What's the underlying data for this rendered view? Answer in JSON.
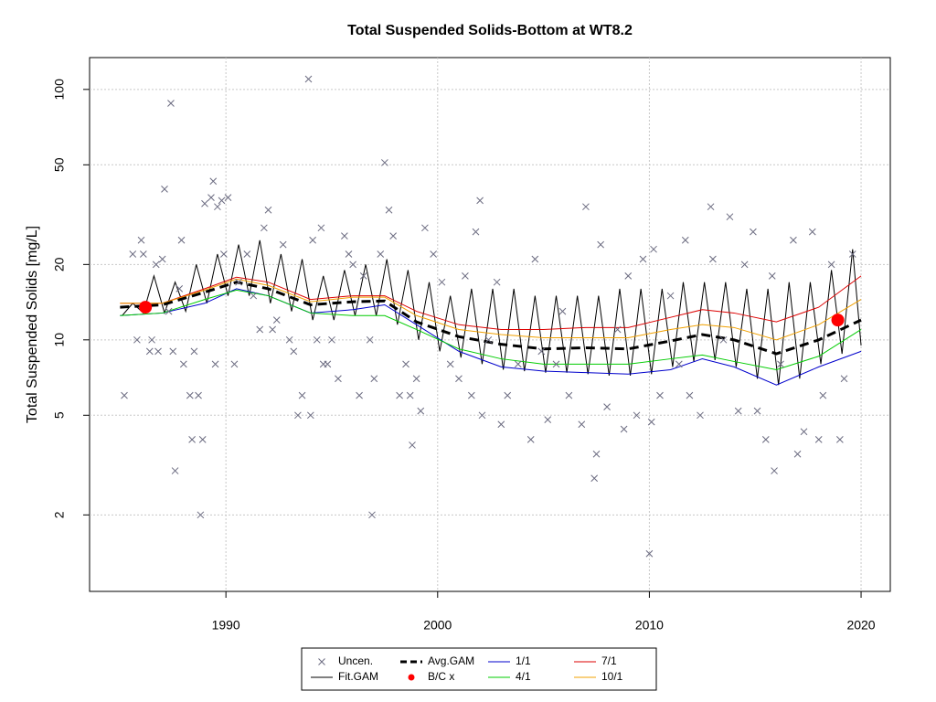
{
  "chart_data": {
    "type": "line",
    "title": "Total Suspended Solids-Bottom at WT8.2",
    "y_label": "Total Suspended Solids [mg/L]",
    "log_y": true,
    "grid": true,
    "legend_position": "bottom",
    "xlim": [
      1983.56,
      2021.38
    ],
    "xticks": [
      1990,
      2000,
      2010,
      2020
    ],
    "ylim": [
      0.99,
      134
    ],
    "yticks": [
      2,
      5,
      10,
      20,
      50,
      100
    ],
    "series": [
      {
        "name": "Uncen.",
        "color": "#6b6b80",
        "style": "points",
        "x": [
          1985.2,
          1985.6,
          1985.8,
          1986,
          1986.1,
          1986.4,
          1986.5,
          1986.7,
          1986.8,
          1987,
          1987.1,
          1987.3,
          1987.4,
          1987.5,
          1987.6,
          1987.8,
          1987.9,
          1988,
          1988.3,
          1988.4,
          1988.5,
          1988.7,
          1988.8,
          1988.9,
          1989,
          1989.3,
          1989.4,
          1989.5,
          1989.6,
          1989.8,
          1989.9,
          1990.1,
          1990.4,
          1990.6,
          1991,
          1991.3,
          1991.6,
          1991.8,
          1992,
          1992.2,
          1992.4,
          1992.7,
          1993,
          1993.2,
          1993.4,
          1993.6,
          1993.9,
          1994,
          1994.1,
          1994.3,
          1994.5,
          1994.6,
          1994.8,
          1995,
          1995.3,
          1995.6,
          1995.8,
          1996,
          1996.3,
          1996.5,
          1996.8,
          1996.9,
          1997,
          1997.3,
          1997.5,
          1997.7,
          1997.9,
          1998.2,
          1998.5,
          1998.7,
          1998.8,
          1999,
          1999.2,
          1999.4,
          1999.8,
          2000.2,
          2000.6,
          2001,
          2001.3,
          2001.6,
          2001.8,
          2002,
          2002.1,
          2002.4,
          2002.8,
          2003,
          2003.3,
          2003.8,
          2004.4,
          2004.6,
          2004.9,
          2005.2,
          2005.6,
          2005.9,
          2006.2,
          2006.8,
          2007,
          2007.4,
          2007.5,
          2007.7,
          2008,
          2008.5,
          2008.8,
          2009,
          2009.4,
          2009.7,
          2010,
          2010.1,
          2010.2,
          2010.5,
          2011,
          2011.4,
          2011.7,
          2011.9,
          2012.4,
          2012.9,
          2013,
          2013.5,
          2013.8,
          2014.2,
          2014.5,
          2014.9,
          2015.1,
          2015.5,
          2015.8,
          2015.9,
          2016.2,
          2016.8,
          2017,
          2017.3,
          2017.7,
          2018,
          2018.2,
          2018.6,
          2019,
          2019.2,
          2019.6
        ],
        "values": [
          6,
          22,
          10,
          25,
          22,
          9,
          10,
          20,
          9,
          21,
          40,
          13,
          88,
          9,
          3,
          16,
          25,
          8,
          6,
          4,
          9,
          6,
          2,
          4,
          35,
          37,
          43,
          8,
          34,
          36,
          22,
          37,
          8,
          17,
          22,
          15,
          11,
          28,
          33,
          11,
          12,
          24,
          10,
          9,
          5,
          6,
          110,
          5,
          25,
          10,
          28,
          8,
          8,
          10,
          7,
          26,
          22,
          20,
          6,
          18,
          10,
          2,
          7,
          22,
          51,
          33,
          26,
          6,
          8,
          6,
          3.8,
          7,
          5.2,
          28,
          22,
          17,
          8,
          7,
          18,
          6,
          27,
          36,
          5,
          10,
          17,
          4.6,
          6,
          8,
          4,
          21,
          9,
          4.8,
          8,
          13,
          6,
          4.6,
          34,
          2.8,
          3.5,
          24,
          5.4,
          11,
          4.4,
          18,
          5,
          21,
          1.4,
          4.7,
          23,
          6,
          15,
          8,
          25,
          6,
          5,
          34,
          21,
          10,
          31,
          5.2,
          20,
          27,
          5.2,
          4,
          18,
          3,
          8,
          25,
          3.5,
          4.3,
          27,
          4,
          6,
          20,
          4,
          7,
          22
        ]
      },
      {
        "name": "Fit.GAM",
        "color": "#000000",
        "style": "line",
        "x": [
          1985.1,
          1985.6,
          1986.1,
          1986.6,
          1987.1,
          1987.6,
          1988.1,
          1988.6,
          1989.1,
          1989.6,
          1990.1,
          1990.6,
          1991.1,
          1991.6,
          1992.1,
          1992.6,
          1993.1,
          1993.6,
          1994.1,
          1994.6,
          1995.1,
          1995.6,
          1996.1,
          1996.6,
          1997.1,
          1997.6,
          1998.1,
          1998.6,
          1999.1,
          1999.6,
          2000.1,
          2000.6,
          2001.1,
          2001.6,
          2002.1,
          2002.6,
          2003.1,
          2003.6,
          2004.1,
          2004.6,
          2005.1,
          2005.6,
          2006.1,
          2006.6,
          2007.1,
          2007.6,
          2008.1,
          2008.6,
          2009.1,
          2009.6,
          2010.1,
          2010.6,
          2011.1,
          2011.6,
          2012.1,
          2012.6,
          2013.1,
          2013.6,
          2014.1,
          2014.6,
          2015.1,
          2015.6,
          2016.1,
          2016.6,
          2017.1,
          2017.6,
          2018.1,
          2018.6,
          2019.1,
          2019.6,
          2020
        ],
        "values": [
          12.5,
          14,
          12.8,
          18,
          12.8,
          17,
          13,
          20,
          14,
          22,
          15,
          24,
          15,
          25,
          14,
          22,
          13,
          21,
          12,
          18,
          12,
          19,
          12.5,
          20,
          12.5,
          21,
          11.5,
          19,
          10,
          17,
          9,
          15,
          8.5,
          16,
          8,
          16,
          7.6,
          16,
          7.5,
          15,
          7.4,
          15,
          7.4,
          15,
          7.3,
          15,
          7.2,
          16,
          7.2,
          16,
          7.3,
          16,
          7.8,
          17,
          8.2,
          17,
          8.3,
          17,
          7.8,
          16,
          7,
          16,
          6.6,
          17,
          7,
          17,
          8,
          19,
          8.8,
          23,
          9.5
        ]
      },
      {
        "name": "Avg.GAM",
        "color": "#000000",
        "style": "dashed",
        "x": [
          1985,
          1987,
          1989,
          1990.5,
          1992,
          1994,
          1996,
          1997.5,
          1999,
          2001,
          2003,
          2005,
          2007,
          2009,
          2011,
          2012.5,
          2014,
          2016,
          2018,
          2020
        ],
        "values": [
          13.5,
          13.8,
          15.5,
          17,
          16,
          13.8,
          14.2,
          14.3,
          11.8,
          10.3,
          9.6,
          9.2,
          9.3,
          9.2,
          9.9,
          10.5,
          10,
          8.8,
          10,
          12
        ]
      },
      {
        "name": "B/C x",
        "color": "#ff0000",
        "style": "dots",
        "x": [
          1986.2,
          2018.9
        ],
        "values": [
          13.5,
          12
        ]
      },
      {
        "name": "1/1",
        "color": "#0000cc",
        "style": "line",
        "x": [
          1985,
          1987,
          1989,
          1990.5,
          1992,
          1994,
          1996,
          1997.5,
          1999,
          2001,
          2003,
          2005,
          2007,
          2009,
          2011,
          2012.5,
          2014,
          2016,
          2018,
          2020
        ],
        "values": [
          12.5,
          12.8,
          14,
          16,
          15,
          12.8,
          13.2,
          13.8,
          11.5,
          9,
          7.8,
          7.5,
          7.4,
          7.3,
          7.6,
          8.4,
          7.8,
          6.6,
          7.8,
          9
        ]
      },
      {
        "name": "4/1",
        "color": "#00cc00",
        "style": "line",
        "x": [
          1985,
          1987,
          1989,
          1990.5,
          1992,
          1994,
          1996,
          1997.5,
          1999,
          2001,
          2003,
          2005,
          2007,
          2009,
          2011,
          2012.5,
          2014,
          2016,
          2018,
          2020
        ],
        "values": [
          12.5,
          12.8,
          14.5,
          15.8,
          15,
          12.8,
          12.5,
          12.5,
          11,
          9.2,
          8.4,
          8,
          8,
          8,
          8.4,
          8.7,
          8.2,
          7.6,
          8.6,
          11
        ]
      },
      {
        "name": "7/1",
        "color": "#dd0000",
        "style": "line",
        "x": [
          1985,
          1987,
          1989,
          1990.5,
          1992,
          1994,
          1996,
          1997.5,
          1999,
          2001,
          2003,
          2005,
          2007,
          2009,
          2011,
          2012.5,
          2014,
          2016,
          2018,
          2020
        ],
        "values": [
          14,
          14,
          16,
          17.8,
          17,
          14.5,
          15,
          15,
          13,
          11.5,
          11,
          11,
          11.2,
          11.2,
          12.3,
          13.2,
          12.8,
          11.8,
          13.5,
          18
        ]
      },
      {
        "name": "10/1",
        "color": "#f0a000",
        "style": "line",
        "x": [
          1985,
          1987,
          1989,
          1990.5,
          1992,
          1994,
          1996,
          1997.5,
          1999,
          2001,
          2003,
          2005,
          2007,
          2009,
          2011,
          2012.5,
          2014,
          2016,
          2018,
          2020
        ],
        "values": [
          14,
          14,
          15.8,
          17.5,
          16.5,
          14.2,
          14.8,
          14.8,
          12.5,
          11,
          10.5,
          10.2,
          10.2,
          10.2,
          11,
          11.5,
          11.2,
          10,
          11.5,
          14.5
        ]
      }
    ]
  }
}
